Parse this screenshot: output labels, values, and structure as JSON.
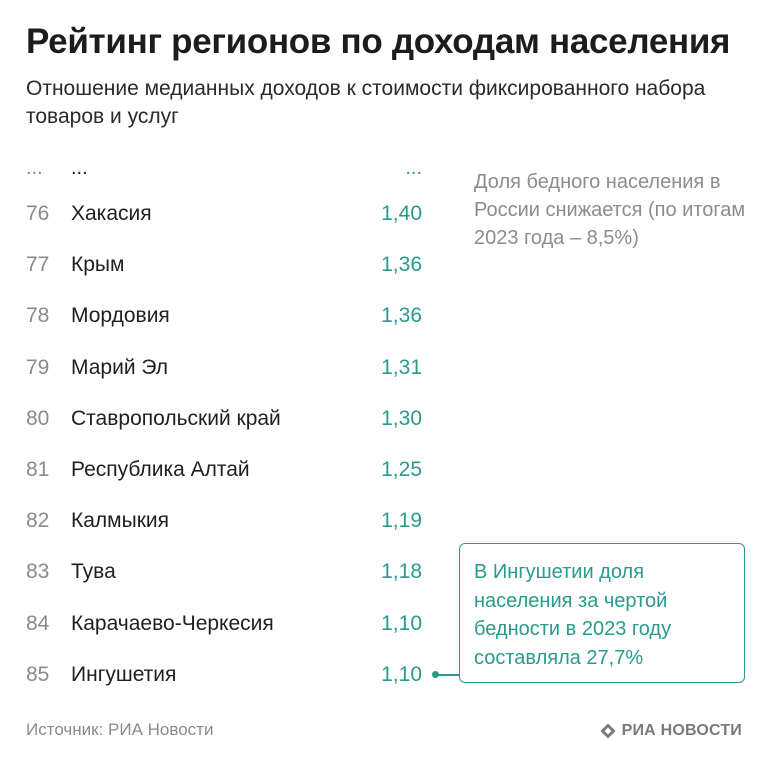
{
  "title": "Рейтинг регионов по доходам населения",
  "subtitle": "Отношение медианных доходов к стоимости фиксированного набора товаров и услуг",
  "ellipsis": {
    "rank": "...",
    "region": "...",
    "value": "..."
  },
  "chart_data": {
    "type": "table",
    "columns": [
      "rank",
      "region",
      "value"
    ],
    "rows": [
      {
        "rank": "76",
        "region": "Хакасия",
        "value": "1,40"
      },
      {
        "rank": "77",
        "region": "Крым",
        "value": "1,36"
      },
      {
        "rank": "78",
        "region": "Мордовия",
        "value": "1,36"
      },
      {
        "rank": "79",
        "region": "Марий Эл",
        "value": "1,31"
      },
      {
        "rank": "80",
        "region": "Ставропольский край",
        "value": "1,30"
      },
      {
        "rank": "81",
        "region": "Республика Алтай",
        "value": "1,25"
      },
      {
        "rank": "82",
        "region": "Калмыкия",
        "value": "1,19"
      },
      {
        "rank": "83",
        "region": "Тува",
        "value": "1,18"
      },
      {
        "rank": "84",
        "region": "Карачаево-Черкесия",
        "value": "1,10"
      },
      {
        "rank": "85",
        "region": "Ингушетия",
        "value": "1,10"
      }
    ]
  },
  "side_note": "Доля бедного населения в России снижается (по итогам 2023 года – 8,5%)",
  "callout": "В Ингушетии доля населения за чертой бедности в 2023 году составляла 27,7%",
  "source": "Источник: РИА Новости",
  "brand": {
    "name": "РИА НОВОСТИ",
    "icon": "ria-logo-icon"
  },
  "colors": {
    "accent": "#2a9a8c",
    "muted": "#8a8a8a",
    "text": "#1f1f1f"
  }
}
